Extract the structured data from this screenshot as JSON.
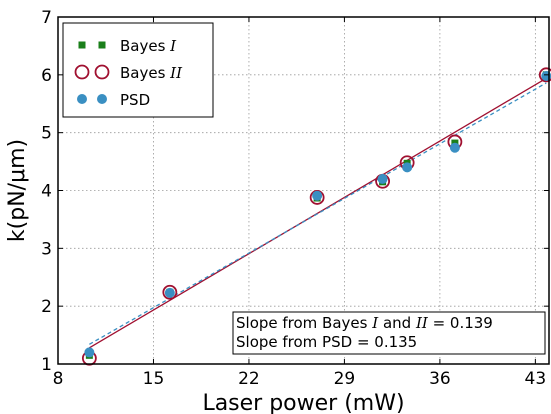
{
  "chart_data": {
    "type": "scatter",
    "xlabel": "Laser power (mW)",
    "ylabel": "k(pN/μm)",
    "xlim": [
      8,
      44
    ],
    "ylim": [
      1,
      7
    ],
    "xticks": [
      8,
      15,
      22,
      29,
      36,
      43
    ],
    "yticks": [
      1,
      2,
      3,
      4,
      5,
      6,
      7
    ],
    "grid": true,
    "legend_position": "top-left",
    "series": [
      {
        "name": "Bayes I",
        "legend_main": "Bayes ",
        "legend_italic": "I",
        "marker": "square",
        "color": "#1a7f1a",
        "x": [
          10.3,
          16.2,
          27.0,
          31.8,
          33.6,
          37.1,
          43.8
        ],
        "y": [
          1.15,
          2.24,
          3.87,
          4.15,
          4.47,
          4.82,
          6.0
        ]
      },
      {
        "name": "Bayes II",
        "legend_main": "Bayes ",
        "legend_italic": "II",
        "marker": "open-circle",
        "color": "#a01030",
        "x": [
          10.3,
          16.2,
          27.0,
          31.8,
          33.6,
          37.1,
          43.8
        ],
        "y": [
          1.1,
          2.24,
          3.88,
          4.16,
          4.48,
          4.84,
          6.0
        ]
      },
      {
        "name": "PSD",
        "legend_main": "PSD",
        "legend_italic": "",
        "marker": "filled-circle",
        "color": "#3a8fc2",
        "x": [
          10.3,
          16.2,
          27.0,
          31.8,
          33.6,
          37.1,
          43.8
        ],
        "y": [
          1.2,
          2.23,
          3.91,
          4.2,
          4.4,
          4.74,
          5.98
        ]
      }
    ],
    "fit_lines": [
      {
        "for": "Bayes",
        "style": "solid",
        "color": "#a01030",
        "x": [
          10.3,
          43.8
        ],
        "y": [
          1.28,
          5.94
        ]
      },
      {
        "for": "PSD",
        "style": "dashed",
        "color": "#3a8fc2",
        "x": [
          10.3,
          43.8
        ],
        "y": [
          1.34,
          5.86
        ]
      }
    ],
    "annotation": {
      "line1_parts": [
        {
          "text": "Slope from Bayes ",
          "italic": false
        },
        {
          "text": "I",
          "italic": true
        },
        {
          "text": " and ",
          "italic": false
        },
        {
          "text": "II",
          "italic": true
        },
        {
          "text": " = 0.139",
          "italic": false
        }
      ],
      "line2": "Slope from PSD = 0.135"
    }
  }
}
